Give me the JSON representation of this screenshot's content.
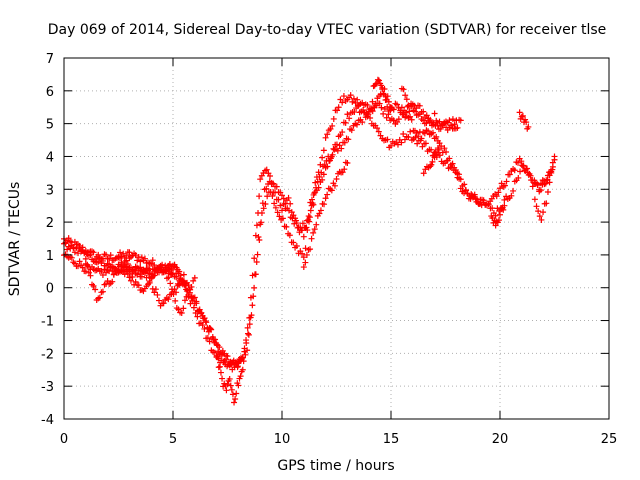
{
  "chart_data": {
    "type": "scatter",
    "title": "Day 069 of 2014, Sidereal Day-to-day VTEC variation (SDTVAR) for receiver tlse",
    "xlabel": "GPS time / hours",
    "ylabel": "SDTVAR / TECUs",
    "xlim": [
      0,
      25
    ],
    "ylim": [
      -4,
      7
    ],
    "xticks": [
      0,
      5,
      10,
      15,
      20,
      25
    ],
    "yticks": [
      -4,
      -3,
      -2,
      -1,
      0,
      1,
      2,
      3,
      4,
      5,
      6,
      7
    ],
    "grid": true,
    "marker": "+",
    "series": [
      {
        "name": "SDTVAR",
        "color": "#ff0000",
        "tracks": [
          {
            "x": [
              0.0,
              0.5,
              1.0,
              1.5,
              2.0,
              2.5,
              3.0,
              3.5,
              4.0,
              4.5,
              4.8,
              5.0,
              5.3,
              5.6,
              6.0,
              6.3,
              6.6,
              6.9,
              7.2,
              7.6,
              7.9,
              8.2,
              8.5,
              8.8,
              9.0,
              9.3,
              9.6,
              10.0,
              10.3,
              10.6,
              11.0,
              11.3,
              11.6,
              12.0,
              12.3,
              12.6,
              13.0,
              13.3,
              13.6,
              14.0,
              14.3,
              14.6,
              14.9,
              15.2,
              15.5,
              15.8,
              16.1,
              16.4,
              16.7,
              17.0,
              17.3,
              17.6,
              17.9,
              18.2,
              18.5,
              18.8,
              19.1,
              19.4,
              19.7,
              20.0,
              20.3,
              20.6,
              20.9,
              21.2,
              21.5,
              21.8,
              22.1,
              22.4
            ],
            "y": [
              1.45,
              1.3,
              1.1,
              0.95,
              0.9,
              0.95,
              1.0,
              0.9,
              0.75,
              0.6,
              0.5,
              0.35,
              0.2,
              0.0,
              -0.4,
              -0.8,
              -1.2,
              -1.6,
              -2.0,
              -2.3,
              -2.4,
              -2.1,
              -1.0,
              1.5,
              3.3,
              3.6,
              3.0,
              2.4,
              2.8,
              2.0,
              1.6,
              2.5,
              3.4,
              4.5,
              5.0,
              5.6,
              5.8,
              5.7,
              5.6,
              5.5,
              5.7,
              6.0,
              5.4,
              5.5,
              5.4,
              5.2,
              4.8,
              4.6,
              4.7,
              4.6,
              4.3,
              4.0,
              3.6,
              3.1,
              2.8,
              2.7,
              2.6,
              2.6,
              2.8,
              3.0,
              3.3,
              3.6,
              3.9,
              3.6,
              3.2,
              3.0,
              3.2,
              3.6
            ]
          },
          {
            "x": [
              0.0,
              0.5,
              1.0,
              1.5,
              2.0,
              2.5,
              3.0,
              3.5,
              4.0,
              4.5,
              5.0,
              5.5,
              6.0,
              6.5,
              7.0,
              7.5,
              8.0,
              8.4,
              8.8,
              9.2,
              9.6,
              10.0,
              10.4,
              10.8,
              11.2,
              11.6,
              12.0,
              12.4,
              12.8,
              13.2,
              13.6,
              14.0,
              14.4,
              14.8,
              15.2,
              15.6,
              16.0,
              16.4,
              16.8,
              17.2,
              17.6,
              18.0
            ],
            "y": [
              1.0,
              0.8,
              0.6,
              0.45,
              0.5,
              0.55,
              0.5,
              0.45,
              0.5,
              0.6,
              0.65,
              0.3,
              -0.4,
              -1.0,
              -1.8,
              -2.2,
              -2.3,
              -2.0,
              0.5,
              3.0,
              3.2,
              2.7,
              2.2,
              1.8,
              2.0,
              3.0,
              3.6,
              4.1,
              4.4,
              4.8,
              5.1,
              5.4,
              5.6,
              5.3,
              5.1,
              5.3,
              5.6,
              5.4,
              5.1,
              4.9,
              5.0,
              5.1
            ]
          },
          {
            "x": [
              0.0,
              0.5,
              1.0,
              1.5,
              2.0,
              2.5,
              3.0,
              3.5,
              4.0,
              4.5,
              5.0,
              5.4,
              5.8,
              6.2,
              6.6,
              7.0,
              7.4,
              7.8,
              8.2,
              8.6,
              9.0,
              9.4,
              9.8,
              10.2,
              10.6,
              11.0,
              11.4,
              11.8,
              12.2,
              12.6,
              13.0,
              13.4,
              13.8,
              14.2,
              14.6,
              15.0,
              15.4,
              15.8,
              16.2,
              16.6,
              17.0,
              17.4,
              17.8,
              18.2,
              18.6,
              19.0,
              19.4,
              19.8,
              20.2,
              20.6,
              21.0,
              21.4,
              21.8,
              22.2,
              22.5
            ],
            "y": [
              1.3,
              1.15,
              1.0,
              0.85,
              0.7,
              0.6,
              0.55,
              0.5,
              0.45,
              0.5,
              0.7,
              0.2,
              -0.4,
              -1.0,
              -1.6,
              -2.1,
              -2.3,
              -2.4,
              -2.2,
              -0.8,
              2.0,
              2.9,
              2.4,
              1.8,
              1.2,
              1.0,
              2.6,
              3.5,
              4.0,
              4.6,
              5.2,
              5.5,
              5.4,
              5.0,
              4.6,
              4.3,
              4.5,
              4.7,
              4.5,
              4.3,
              4.1,
              3.9,
              3.6,
              3.3,
              2.9,
              2.7,
              2.5,
              2.3,
              2.6,
              3.0,
              3.7,
              3.4,
              3.1,
              3.3,
              3.9
            ]
          },
          {
            "x": [
              1.0,
              1.5,
              2.0,
              2.5,
              3.0
            ],
            "y": [
              0.8,
              -0.3,
              0.1,
              0.5,
              0.9
            ]
          },
          {
            "x": [
              2.5,
              3.0,
              3.5,
              4.0,
              4.5
            ],
            "y": [
              0.9,
              0.4,
              -0.1,
              0.3,
              0.7
            ]
          },
          {
            "x": [
              3.5,
              4.0,
              4.5,
              5.0,
              5.5
            ],
            "y": [
              0.7,
              0.2,
              -0.6,
              -0.2,
              0.4
            ]
          },
          {
            "x": [
              4.5,
              4.8,
              5.1,
              5.4,
              5.7,
              6.0
            ],
            "y": [
              0.6,
              0.3,
              -0.5,
              -0.8,
              -0.2,
              0.3
            ]
          },
          {
            "x": [
              7.0,
              7.2,
              7.4,
              7.6,
              7.8,
              8.0,
              8.2
            ],
            "y": [
              -2.0,
              -2.7,
              -3.1,
              -2.8,
              -3.4,
              -2.9,
              -2.5
            ]
          },
          {
            "x": [
              11.0,
              11.5,
              12.0,
              12.5,
              13.0
            ],
            "y": [
              0.6,
              1.8,
              2.8,
              3.3,
              3.8
            ]
          },
          {
            "x": [
              14.2,
              14.4,
              14.6,
              14.8,
              15.0
            ],
            "y": [
              6.1,
              6.3,
              6.1,
              5.8,
              5.5
            ]
          },
          {
            "x": [
              15.5,
              15.8,
              16.1,
              16.4,
              16.7,
              17.0,
              17.3,
              17.6,
              17.9,
              18.2
            ],
            "y": [
              6.1,
              5.6,
              5.3,
              5.2,
              5.0,
              5.2,
              4.9,
              4.9,
              4.8,
              5.1
            ]
          },
          {
            "x": [
              16.5,
              16.8,
              17.0,
              17.2
            ],
            "y": [
              3.5,
              3.8,
              4.0,
              4.2
            ]
          },
          {
            "x": [
              19.6,
              19.8,
              20.0,
              20.2
            ],
            "y": [
              2.2,
              2.0,
              2.2,
              2.5
            ]
          },
          {
            "x": [
              20.9,
              21.1,
              21.3
            ],
            "y": [
              5.3,
              5.1,
              4.9
            ]
          },
          {
            "x": [
              21.6,
              21.9,
              22.2,
              22.5
            ],
            "y": [
              2.7,
              2.1,
              2.8,
              4.0
            ]
          }
        ]
      }
    ]
  }
}
